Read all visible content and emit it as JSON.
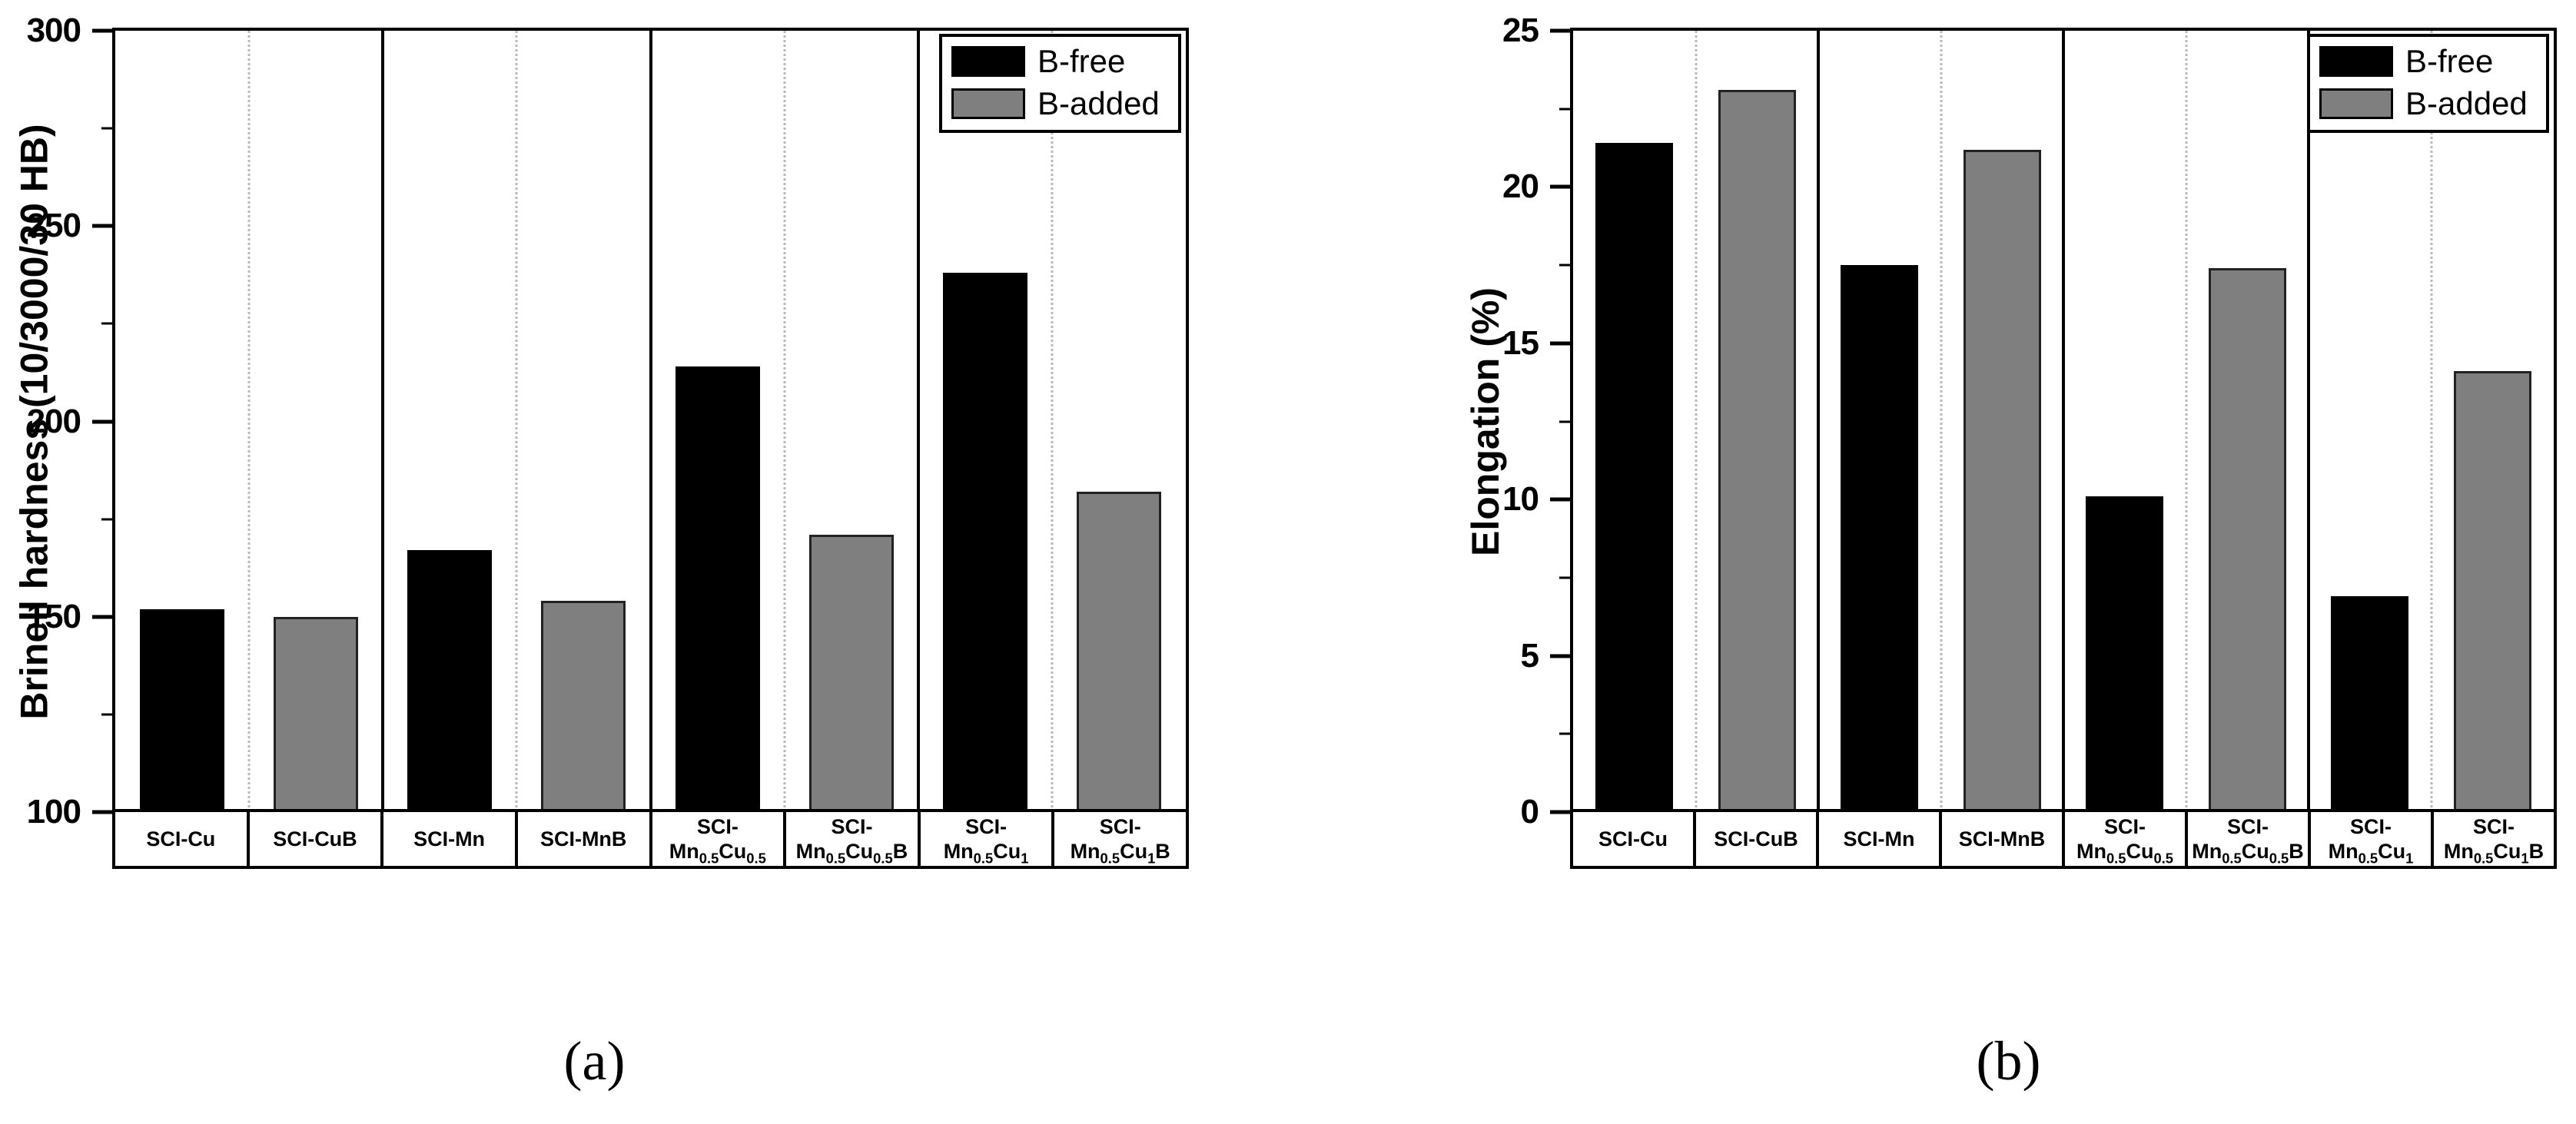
{
  "series": [
    {
      "name": "B-free",
      "color": "#000000"
    },
    {
      "name": "B-added",
      "color": "#7f7f7f"
    }
  ],
  "colors": {
    "axis": "#000000",
    "pair_separator_dotted": "#b9b9b9",
    "background": "#ffffff",
    "category_box_bg": "#ffffff"
  },
  "chart_data": [
    {
      "id": "a",
      "type": "bar",
      "title": "",
      "ylabel": "Brinell hardness (10/3000/30 HB)",
      "xlabel": "",
      "ylim": [
        100,
        300
      ],
      "yticks_major": [
        300,
        250,
        200,
        150,
        100
      ],
      "yticks_minor": [
        275,
        225,
        175,
        125
      ],
      "grid": "dotted vertical separator between each bar pair; solid vertical divider between pairs",
      "legend_position": "top-right",
      "legend_entries": [
        "B-free",
        "B-added"
      ],
      "categories": [
        "SCI-Cu",
        "SCI-CuB",
        "SCI-Mn",
        "SCI-MnB",
        "SCI-Mn0.5Cu0.5",
        "SCI-Mn0.5Cu0.5B",
        "SCI-Mn0.5Cu1",
        "SCI-Mn0.5Cu1B"
      ],
      "category_label_lines": [
        [
          "SCI-Cu"
        ],
        [
          "SCI-CuB"
        ],
        [
          "SCI-Mn"
        ],
        [
          "SCI-MnB"
        ],
        [
          "SCI-",
          "Mn_{0.5}Cu_{0.5}"
        ],
        [
          "SCI-",
          "Mn_{0.5}Cu_{0.5}B"
        ],
        [
          "SCI-",
          "Mn_{0.5}Cu_{1}"
        ],
        [
          "SCI-",
          "Mn_{0.5}Cu_{1}B"
        ]
      ],
      "series_per_bar": [
        "B-free",
        "B-added",
        "B-free",
        "B-added",
        "B-free",
        "B-added",
        "B-free",
        "B-added"
      ],
      "values": [
        152,
        150,
        167,
        154,
        214,
        171,
        238,
        182
      ],
      "caption": "(a)"
    },
    {
      "id": "b",
      "type": "bar",
      "title": "",
      "ylabel": "Elongation (%)",
      "xlabel": "",
      "ylim": [
        0,
        25
      ],
      "yticks_major": [
        25,
        20,
        15,
        10,
        5,
        0
      ],
      "yticks_minor": [
        22.5,
        17.5,
        12.5,
        7.5,
        2.5
      ],
      "grid": "dotted vertical separator between each bar pair; solid vertical divider between pairs",
      "legend_position": "top-right",
      "legend_entries": [
        "B-free",
        "B-added"
      ],
      "categories": [
        "SCI-Cu",
        "SCI-CuB",
        "SCI-Mn",
        "SCI-MnB",
        "SCI-Mn0.5Cu0.5",
        "SCI-Mn0.5Cu0.5B",
        "SCI-Mn0.5Cu1",
        "SCI-Mn0.5Cu1B"
      ],
      "category_label_lines": [
        [
          "SCI-Cu"
        ],
        [
          "SCI-CuB"
        ],
        [
          "SCI-Mn"
        ],
        [
          "SCI-MnB"
        ],
        [
          "SCI-",
          "Mn_{0.5}Cu_{0.5}"
        ],
        [
          "SCI-",
          "Mn_{0.5}Cu_{0.5}B"
        ],
        [
          "SCI-",
          "Mn_{0.5}Cu_{1}"
        ],
        [
          "SCI-",
          "Mn_{0.5}Cu_{1}B"
        ]
      ],
      "series_per_bar": [
        "B-free",
        "B-added",
        "B-free",
        "B-added",
        "B-free",
        "B-added",
        "B-free",
        "B-added"
      ],
      "values": [
        21.4,
        23.1,
        17.5,
        21.2,
        10.1,
        17.4,
        6.9,
        14.1
      ],
      "caption": "(b)"
    }
  ]
}
